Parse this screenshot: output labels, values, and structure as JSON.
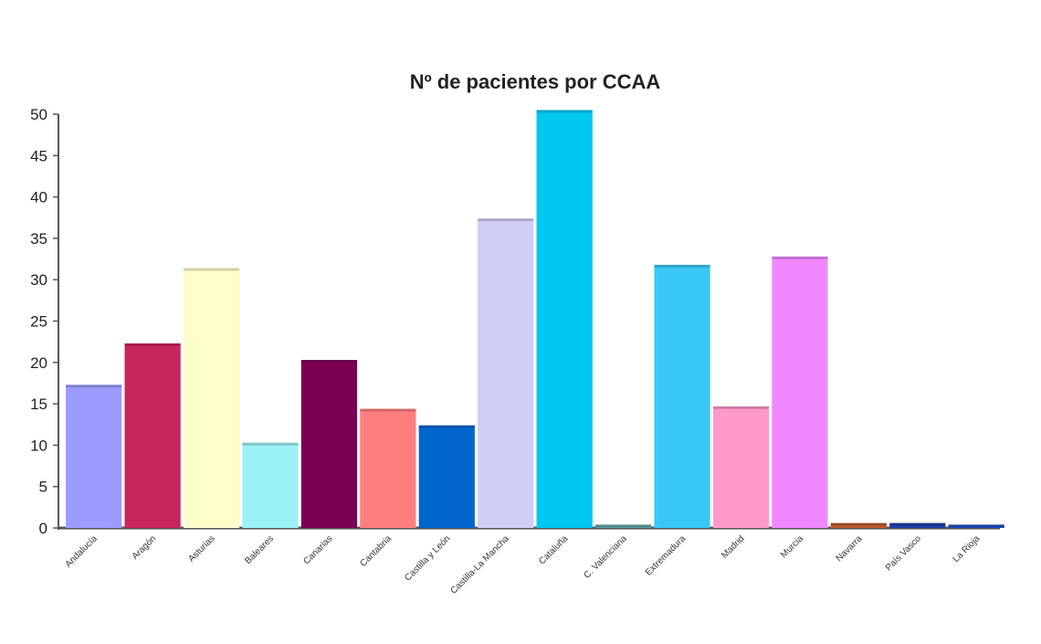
{
  "chart_data": {
    "type": "bar",
    "title": "Nº de pacientes por CCAA",
    "xlabel": "",
    "ylabel": "",
    "ylim": [
      0,
      50
    ],
    "yticks": [
      0,
      5,
      10,
      15,
      20,
      25,
      30,
      35,
      40,
      45,
      50
    ],
    "grid": false,
    "legend": "none",
    "categories": [
      "Andalucía",
      "Aragón",
      "Asturias",
      "Baleares",
      "Canarias",
      "Cantabria",
      "Castilla y León",
      "Castilla-La Mancha",
      "Cataluña",
      "C. Valenciana",
      "Extremadura",
      "Madrid",
      "Murcia",
      "Navarra",
      "País Vasco",
      "La Rioja"
    ],
    "values": [
      17.3,
      22.3,
      31.4,
      10.3,
      20.3,
      14.4,
      12.4,
      37.4,
      50.5,
      0.4,
      31.8,
      14.7,
      32.8,
      0.6,
      0.6,
      0.4
    ],
    "colors": [
      "#9c9cff",
      "#c8255e",
      "#ffffcc",
      "#9af2f7",
      "#7b0054",
      "#ff7f7f",
      "#0066cc",
      "#cfcdf6",
      "#00c7f0",
      "#60a8a8",
      "#39c8f5",
      "#ff99cc",
      "#ef88ff",
      "#c05a30",
      "#2040a8",
      "#1e50c8"
    ]
  }
}
